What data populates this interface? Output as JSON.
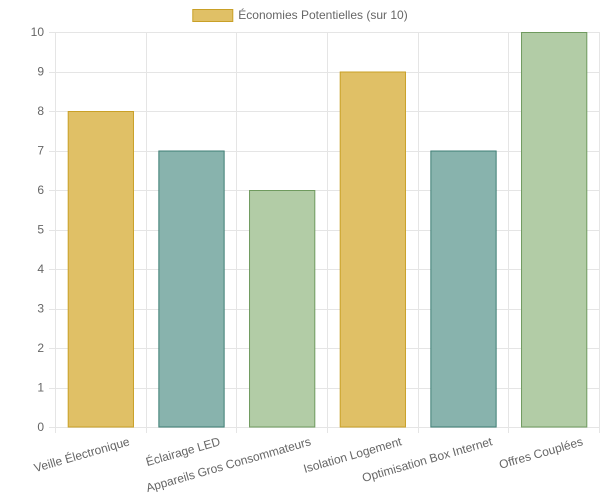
{
  "chart_data": {
    "type": "bar",
    "categories": [
      "Veille Électronique",
      "Éclairage LED",
      "Appareils Gros Consommateurs",
      "Isolation Logement",
      "Optimisation Box Internet",
      "Offres Couplées"
    ],
    "series": [
      {
        "name": "Économies Potentielles (sur 10)",
        "values": [
          8,
          7,
          6,
          9,
          7,
          10
        ]
      }
    ],
    "ylim": [
      0,
      10
    ],
    "yticks": [
      0,
      1,
      2,
      3,
      4,
      5,
      6,
      7,
      8,
      9,
      10
    ],
    "grid": true,
    "legend_position": "top",
    "bar_colors": [
      "#dbb84a",
      "#6fa39c",
      "#9fc28e",
      "#dbb84a",
      "#6fa39c",
      "#9fc28e"
    ],
    "bar_fill_colors": [
      "#e0c066",
      "#88b3ad",
      "#b2cca6",
      "#e0c066",
      "#88b3ad",
      "#b2cca6"
    ],
    "bar_border_colors": [
      "#c9a027",
      "#3d7d74",
      "#6f9a5e",
      "#c9a027",
      "#3d7d74",
      "#6f9a5e"
    ],
    "legend_swatch_fill": "#e0c066",
    "legend_swatch_border": "#c9a027"
  }
}
